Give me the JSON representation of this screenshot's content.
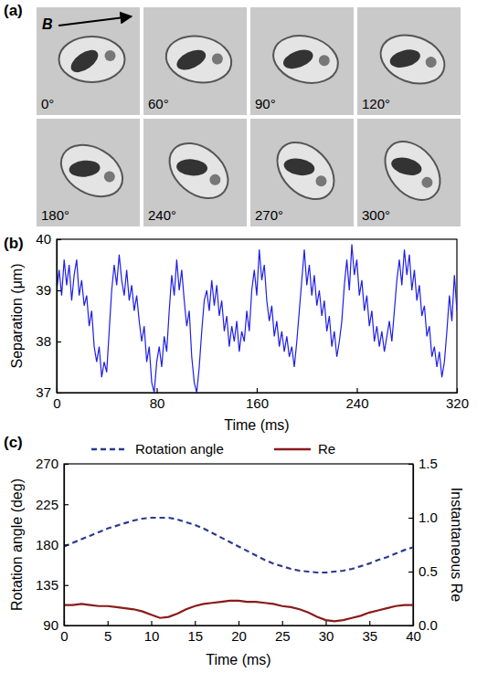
{
  "chart_data": [
    {
      "type": "image_grid",
      "panel": "(a)",
      "field_label": "B",
      "labels": [
        "0°",
        "60°",
        "90°",
        "120°",
        "180°",
        "240°",
        "270°",
        "300°"
      ]
    },
    {
      "type": "line",
      "panel": "(b)",
      "x_label": "Time (ms)",
      "y_label": "Separation (μm)",
      "color": "#1f1fe6",
      "xlim": [
        0,
        320
      ],
      "xticks": [
        0,
        80,
        160,
        240,
        320
      ],
      "ylim": [
        37,
        40
      ],
      "yticks": [
        37,
        38,
        39,
        40
      ],
      "x": [
        0,
        2,
        4,
        6,
        8,
        10,
        12,
        14,
        16,
        18,
        20,
        22,
        24,
        26,
        28,
        30,
        32,
        34,
        36,
        38,
        40,
        42,
        44,
        46,
        48,
        50,
        52,
        54,
        56,
        58,
        60,
        62,
        64,
        66,
        68,
        70,
        72,
        74,
        76,
        78,
        80,
        82,
        84,
        86,
        88,
        90,
        92,
        94,
        96,
        98,
        100,
        102,
        104,
        106,
        108,
        110,
        112,
        114,
        116,
        118,
        120,
        122,
        124,
        126,
        128,
        130,
        132,
        134,
        136,
        138,
        140,
        142,
        144,
        146,
        148,
        150,
        152,
        154,
        156,
        158,
        160,
        162,
        164,
        166,
        168,
        170,
        172,
        174,
        176,
        178,
        180,
        182,
        184,
        186,
        188,
        190,
        192,
        194,
        196,
        198,
        200,
        202,
        204,
        206,
        208,
        210,
        212,
        214,
        216,
        218,
        220,
        222,
        224,
        226,
        228,
        230,
        232,
        234,
        236,
        238,
        240,
        242,
        244,
        246,
        248,
        250,
        252,
        254,
        256,
        258,
        260,
        262,
        264,
        266,
        268,
        270,
        272,
        274,
        276,
        278,
        280,
        282,
        284,
        286,
        288,
        290,
        292,
        294,
        296,
        298,
        300,
        302,
        304,
        306,
        308,
        310,
        312,
        314,
        316,
        318,
        320
      ],
      "values": [
        39.0,
        39.4,
        38.9,
        39.6,
        39.1,
        39.5,
        38.8,
        39.3,
        39.6,
        38.9,
        39.2,
        38.7,
        38.9,
        38.3,
        38.6,
        37.9,
        37.6,
        37.9,
        37.3,
        37.6,
        37.4,
        38.2,
        39.0,
        39.5,
        39.1,
        39.7,
        39.2,
        38.9,
        39.4,
        38.8,
        39.1,
        38.6,
        38.9,
        38.4,
        38.0,
        38.3,
        37.6,
        37.9,
        37.2,
        37.0,
        37.6,
        37.9,
        37.5,
        38.1,
        37.8,
        38.6,
        39.3,
        38.9,
        39.6,
        39.0,
        39.4,
        38.8,
        38.3,
        38.6,
        37.7,
        37.2,
        37.0,
        37.5,
        38.2,
        38.8,
        39.0,
        38.6,
        39.2,
        38.7,
        39.1,
        38.5,
        38.8,
        38.2,
        38.5,
        37.9,
        38.3,
        38.0,
        38.4,
        37.8,
        38.2,
        38.0,
        38.6,
        38.2,
        39.0,
        39.4,
        38.9,
        39.8,
        39.2,
        39.5,
        38.8,
        38.4,
        38.7,
        38.1,
        38.4,
        37.9,
        38.2,
        37.8,
        38.1,
        37.7,
        37.9,
        37.5,
        38.0,
        38.6,
        39.2,
        39.8,
        39.1,
        39.5,
        38.9,
        39.3,
        38.7,
        39.0,
        38.5,
        38.8,
        38.2,
        38.5,
        37.9,
        38.2,
        37.7,
        38.0,
        38.4,
        39.1,
        39.6,
        39.0,
        39.9,
        39.3,
        39.6,
        38.9,
        39.2,
        38.6,
        38.9,
        38.3,
        38.6,
        38.0,
        38.3,
        37.9,
        38.2,
        37.8,
        38.1,
        38.4,
        38.0,
        38.6,
        39.2,
        39.6,
        39.1,
        39.8,
        39.3,
        39.7,
        39.0,
        39.4,
        38.8,
        39.1,
        38.5,
        38.7,
        38.1,
        38.3,
        37.7,
        37.9,
        37.5,
        37.8,
        37.3,
        37.6,
        38.2,
        38.9,
        38.4,
        39.3,
        38.6
      ]
    },
    {
      "type": "line",
      "panel": "(c)",
      "x_label": "Time (ms)",
      "y_label": "Rotation angle (deg)",
      "y2_label": "Instantaneous Re",
      "legend": "top",
      "xlim": [
        0,
        40
      ],
      "xticks": [
        0,
        5,
        10,
        15,
        20,
        25,
        30,
        35,
        40
      ],
      "ylim": [
        90,
        270
      ],
      "yticks": [
        90,
        135,
        180,
        225,
        270
      ],
      "y2lim": [
        0,
        1.5
      ],
      "y2ticks": [
        {
          "value": 0,
          "label": "0.0"
        },
        {
          "value": 0.5,
          "label": "0.5"
        },
        {
          "value": 1,
          "label": "1.0"
        },
        {
          "value": 1.5,
          "label": "1.5"
        }
      ],
      "x": [
        0,
        1,
        2,
        3,
        4,
        5,
        6,
        7,
        8,
        9,
        10,
        11,
        12,
        13,
        14,
        15,
        16,
        17,
        18,
        19,
        20,
        21,
        22,
        23,
        24,
        25,
        26,
        27,
        28,
        29,
        30,
        31,
        32,
        33,
        34,
        35,
        36,
        37,
        38,
        39,
        40
      ],
      "series": [
        {
          "name": "Rotation angle",
          "color": "#2b3a8f",
          "line_style": "dashed",
          "values": [
            178,
            182,
            186,
            190,
            194,
            198,
            201,
            204,
            207,
            209,
            210,
            210,
            210,
            208,
            205,
            202,
            198,
            193,
            188,
            183,
            178,
            173,
            168,
            163,
            159,
            156,
            153,
            151,
            150,
            149,
            149,
            150,
            151,
            153,
            156,
            159,
            163,
            166,
            170,
            174,
            177
          ]
        },
        {
          "name": "Re",
          "color": "#8b1a1a",
          "line_style": "solid",
          "axis": "y2",
          "values": [
            0.19,
            0.19,
            0.2,
            0.19,
            0.18,
            0.18,
            0.17,
            0.16,
            0.15,
            0.13,
            0.1,
            0.07,
            0.08,
            0.11,
            0.15,
            0.18,
            0.2,
            0.21,
            0.22,
            0.23,
            0.23,
            0.22,
            0.22,
            0.21,
            0.2,
            0.18,
            0.17,
            0.15,
            0.12,
            0.08,
            0.05,
            0.04,
            0.05,
            0.07,
            0.09,
            0.12,
            0.14,
            0.16,
            0.18,
            0.19,
            0.19
          ]
        }
      ]
    }
  ]
}
